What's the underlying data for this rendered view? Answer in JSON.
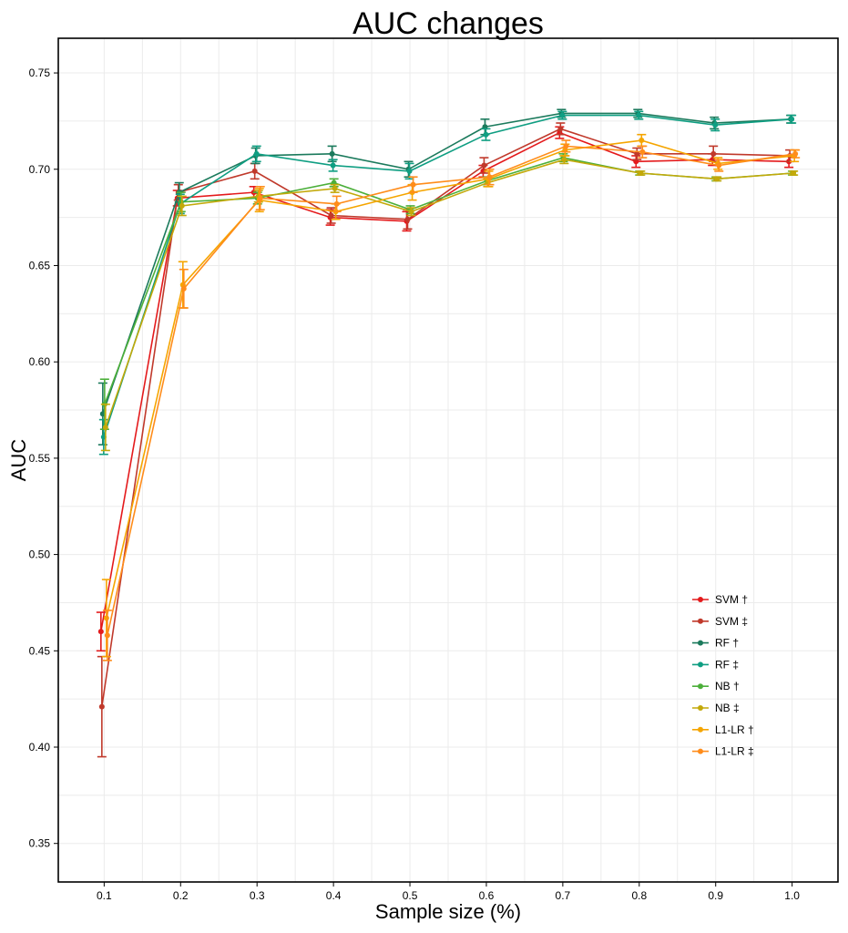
{
  "chart_data": {
    "type": "line",
    "title": "AUC changes",
    "xlabel": "Sample size (%)",
    "ylabel": "AUC",
    "x": [
      0.1,
      0.2,
      0.3,
      0.4,
      0.5,
      0.6,
      0.7,
      0.8,
      0.9,
      1.0
    ],
    "x_tick_labels": [
      "0.1",
      "0.2",
      "0.3",
      "0.4",
      "0.5",
      "0.6",
      "0.7",
      "0.8",
      "0.9",
      "1.0"
    ],
    "xlim": [
      0.04,
      1.06
    ],
    "ylim": [
      0.33,
      0.768
    ],
    "y_ticks": [
      0.35,
      0.4,
      0.45,
      0.5,
      0.55,
      0.6,
      0.65,
      0.7,
      0.75
    ],
    "y_tick_labels": [
      "0.35",
      "0.40",
      "0.45",
      "0.50",
      "0.55",
      "0.60",
      "0.65",
      "0.70",
      "0.75"
    ],
    "grid": true,
    "legend_position": "bottom-right",
    "series": [
      {
        "name": "SVM †",
        "color": "#e41a1c",
        "values": [
          0.46,
          0.685,
          0.688,
          0.675,
          0.673,
          0.699,
          0.719,
          0.704,
          0.705,
          0.704
        ],
        "errors": [
          0.01,
          0.004,
          0.003,
          0.004,
          0.005,
          0.003,
          0.003,
          0.003,
          0.003,
          0.003
        ]
      },
      {
        "name": "SVM ‡",
        "color": "#c0392b",
        "values": [
          0.421,
          0.688,
          0.699,
          0.676,
          0.674,
          0.702,
          0.721,
          0.708,
          0.708,
          0.707
        ],
        "errors": [
          0.026,
          0.004,
          0.004,
          0.004,
          0.005,
          0.004,
          0.003,
          0.003,
          0.004,
          0.003
        ]
      },
      {
        "name": "RF †",
        "color": "#1b7a5c",
        "values": [
          0.573,
          0.688,
          0.707,
          0.708,
          0.7,
          0.722,
          0.729,
          0.729,
          0.724,
          0.726
        ],
        "errors": [
          0.016,
          0.005,
          0.004,
          0.004,
          0.004,
          0.004,
          0.002,
          0.002,
          0.003,
          0.002
        ]
      },
      {
        "name": "RF ‡",
        "color": "#0f9e82",
        "values": [
          0.561,
          0.682,
          0.708,
          0.702,
          0.699,
          0.718,
          0.728,
          0.728,
          0.723,
          0.726
        ],
        "errors": [
          0.009,
          0.005,
          0.004,
          0.003,
          0.004,
          0.003,
          0.002,
          0.002,
          0.003,
          0.002
        ]
      },
      {
        "name": "NB †",
        "color": "#4caf3a",
        "values": [
          0.578,
          0.683,
          0.685,
          0.693,
          0.679,
          0.694,
          0.706,
          0.698,
          0.695,
          0.698
        ],
        "errors": [
          0.013,
          0.005,
          0.003,
          0.002,
          0.002,
          0.002,
          0.002,
          0.001,
          0.001,
          0.001
        ]
      },
      {
        "name": "NB ‡",
        "color": "#c3a90a",
        "values": [
          0.566,
          0.681,
          0.686,
          0.69,
          0.678,
          0.693,
          0.705,
          0.698,
          0.695,
          0.698
        ],
        "errors": [
          0.012,
          0.005,
          0.003,
          0.002,
          0.002,
          0.002,
          0.002,
          0.001,
          0.001,
          0.001
        ]
      },
      {
        "name": "L1-LR †",
        "color": "#f5a500",
        "values": [
          0.467,
          0.64,
          0.684,
          0.678,
          0.688,
          0.695,
          0.71,
          0.715,
          0.703,
          0.707
        ],
        "errors": [
          0.02,
          0.012,
          0.006,
          0.004,
          0.004,
          0.004,
          0.003,
          0.003,
          0.003,
          0.003
        ]
      },
      {
        "name": "L1-LR ‡",
        "color": "#ff8c1a",
        "values": [
          0.458,
          0.638,
          0.685,
          0.682,
          0.692,
          0.696,
          0.712,
          0.709,
          0.702,
          0.708
        ],
        "errors": [
          0.013,
          0.01,
          0.006,
          0.004,
          0.004,
          0.004,
          0.003,
          0.003,
          0.003,
          0.002
        ]
      }
    ]
  }
}
